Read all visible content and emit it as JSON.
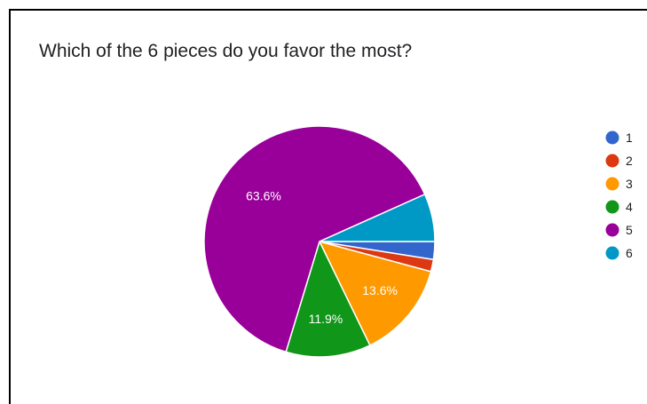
{
  "title": "Which of the 6 pieces do you favor the most?",
  "chart_data": {
    "type": "pie",
    "title": "Which of the 6 pieces do you favor the most?",
    "categories": [
      "1",
      "2",
      "3",
      "4",
      "5",
      "6"
    ],
    "values": [
      2.5,
      1.7,
      13.6,
      11.9,
      63.6,
      6.7
    ],
    "colors": [
      "#3366cc",
      "#dc3912",
      "#ff9900",
      "#109618",
      "#990099",
      "#0099c6"
    ],
    "slice_labels": [
      "",
      "",
      "13.6%",
      "11.9%",
      "63.6%",
      ""
    ],
    "legend_position": "right"
  }
}
